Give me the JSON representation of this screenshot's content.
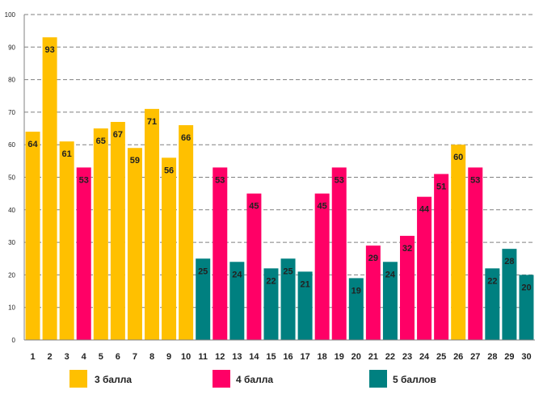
{
  "chart_data": {
    "type": "bar",
    "title": "",
    "xlabel": "",
    "ylabel": "",
    "ylim": [
      0,
      100
    ],
    "ytick_step": 10,
    "grid": true,
    "legend_placement": "bottom",
    "categories": [
      "1",
      "2",
      "3",
      "4",
      "5",
      "6",
      "7",
      "8",
      "9",
      "10",
      "11",
      "12",
      "13",
      "14",
      "15",
      "16",
      "17",
      "18",
      "19",
      "20",
      "21",
      "22",
      "23",
      "24",
      "25",
      "26",
      "27",
      "28",
      "29",
      "30"
    ],
    "values": [
      64,
      93,
      61,
      53,
      65,
      67,
      59,
      71,
      56,
      66,
      25,
      53,
      24,
      45,
      22,
      25,
      21,
      45,
      53,
      19,
      29,
      24,
      32,
      44,
      51,
      60,
      53,
      22,
      28,
      20
    ],
    "groups": [
      "3 балла",
      "3 балла",
      "3 балла",
      "4 балла",
      "3 балла",
      "3 балла",
      "3 балла",
      "3 балла",
      "3 балла",
      "3 балла",
      "5 баллов",
      "4 балла",
      "5 баллов",
      "4 балла",
      "5 баллов",
      "5 баллов",
      "5 баллов",
      "4 балла",
      "4 балла",
      "5 баллов",
      "4 балла",
      "5 баллов",
      "4 балла",
      "4 балла",
      "4 балла",
      "3 балла",
      "4 балла",
      "5 баллов",
      "5 баллов",
      "5 баллов"
    ],
    "legend": [
      {
        "name": "3 балла",
        "color": "#FFC000"
      },
      {
        "name": "4 балла",
        "color": "#FF0066"
      },
      {
        "name": "5 баллов",
        "color": "#008080"
      }
    ]
  }
}
